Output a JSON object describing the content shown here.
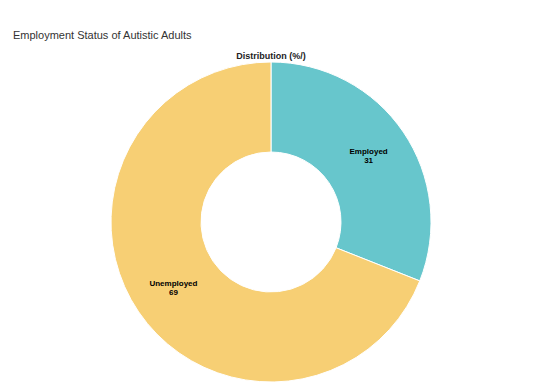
{
  "chart_data": {
    "type": "pie",
    "title": "Employment Status of Autistic Adults",
    "subtitle": "Distribution (%/)",
    "categories": [
      "Employed",
      "Unemployed"
    ],
    "values": [
      31,
      69
    ],
    "colors": [
      "#67c6cc",
      "#f7cf74"
    ],
    "data_labels": true
  }
}
